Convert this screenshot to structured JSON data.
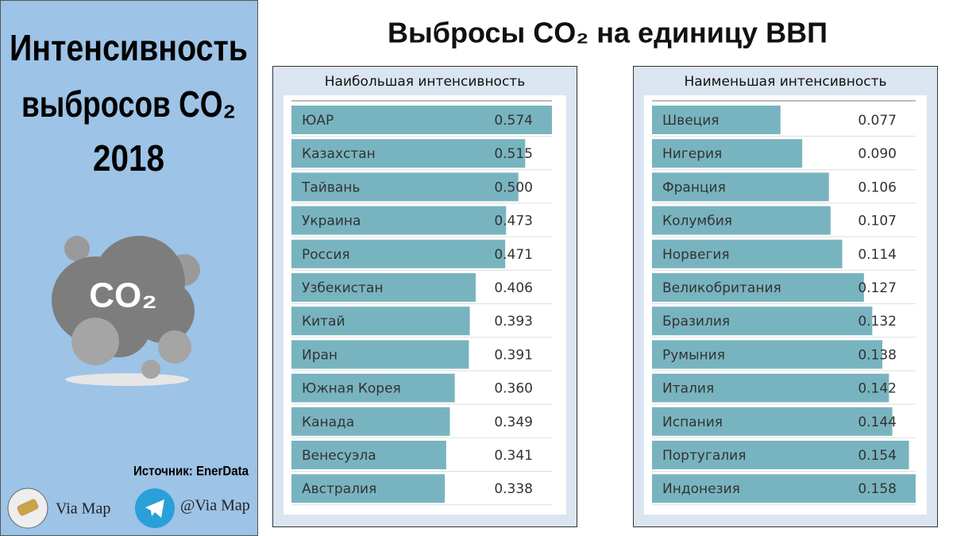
{
  "title": "Выбросы CO₂ на единицу ВВП",
  "left_panel": {
    "title_lines": [
      "Интенсивность",
      "выбросов CO₂",
      "2018"
    ],
    "icon_text": "CO₂",
    "source": "Источник: EnerData",
    "brand": "Via Map",
    "telegram": "@Via Map"
  },
  "chart_data": [
    {
      "type": "bar",
      "title": "Наибольшая интенсивность",
      "color": "#78b4bf",
      "categories": [
        "ЮАР",
        "Казахстан",
        "Тайвань",
        "Украина",
        "Россия",
        "Узбекистан",
        "Китай",
        "Иран",
        "Южная Корея",
        "Канада",
        "Венесуэла",
        "Австралия"
      ],
      "values": [
        0.574,
        0.515,
        0.5,
        0.473,
        0.471,
        0.406,
        0.393,
        0.391,
        0.36,
        0.349,
        0.341,
        0.338
      ],
      "value_labels": [
        "0.574",
        "0.515",
        "0.500",
        "0.473",
        "0.471",
        "0.406",
        "0.393",
        "0.391",
        "0.360",
        "0.349",
        "0.341",
        "0.338"
      ]
    },
    {
      "type": "bar",
      "title": "Наименьшая интенсивность",
      "color": "#78b4bf",
      "categories": [
        "Швеция",
        "Нигерия",
        "Франция",
        "Колумбия",
        "Норвегия",
        "Великобритания",
        "Бразилия",
        "Румыния",
        "Италия",
        "Испания",
        "Португалия",
        "Индонезия"
      ],
      "values": [
        0.077,
        0.09,
        0.106,
        0.107,
        0.114,
        0.127,
        0.132,
        0.138,
        0.142,
        0.144,
        0.154,
        0.158
      ],
      "value_labels": [
        "0.077",
        "0.090",
        "0.106",
        "0.107",
        "0.114",
        "0.127",
        "0.132",
        "0.138",
        "0.142",
        "0.144",
        "0.154",
        "0.158"
      ]
    }
  ]
}
